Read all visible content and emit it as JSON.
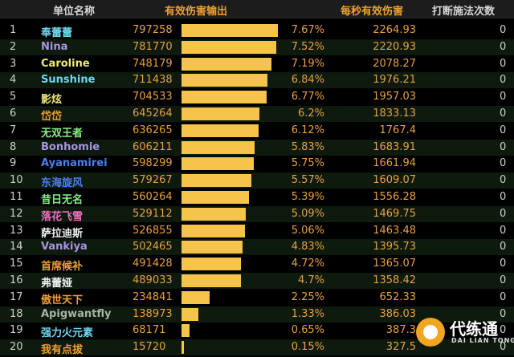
{
  "header": {
    "name": "单位名称",
    "damage": "有效伤害输出",
    "dps": "每秒有效伤害",
    "interrupts": "打断施法次数"
  },
  "colors": {
    "bar": "#f6c44a",
    "value": "#e8a040",
    "name_cyan": "#6fd8f0",
    "name_purple": "#a896e0",
    "name_yellow": "#f0ec78",
    "name_orange": "#f0a030",
    "name_green": "#88ec88",
    "name_blue": "#4a80f0",
    "name_pink": "#f070c0",
    "name_white": "#f0f0f0",
    "name_grey": "#a8b0a8"
  },
  "rows": [
    {
      "rank": "1",
      "name": "奉蕾蕾",
      "color": "#6fd8f0",
      "damage": "797258",
      "percent": "7.67%",
      "share": 7.67,
      "dps": "2264.93",
      "interrupts": "0"
    },
    {
      "rank": "2",
      "name": "Nina",
      "color": "#a896e0",
      "damage": "781770",
      "percent": "7.52%",
      "share": 7.52,
      "dps": "2220.93",
      "interrupts": "0"
    },
    {
      "rank": "3",
      "name": "Caroline",
      "color": "#f0ec78",
      "damage": "748179",
      "percent": "7.19%",
      "share": 7.19,
      "dps": "2078.27",
      "interrupts": "0"
    },
    {
      "rank": "4",
      "name": "Sunshine",
      "color": "#6fd8f0",
      "damage": "711438",
      "percent": "6.84%",
      "share": 6.84,
      "dps": "1976.21",
      "interrupts": "0"
    },
    {
      "rank": "5",
      "name": "影炫",
      "color": "#f0ec78",
      "damage": "704533",
      "percent": "6.77%",
      "share": 6.77,
      "dps": "1957.03",
      "interrupts": "0"
    },
    {
      "rank": "6",
      "name": "岱岱",
      "color": "#f0a030",
      "damage": "645264",
      "percent": "6.2%",
      "share": 6.2,
      "dps": "1833.13",
      "interrupts": "0"
    },
    {
      "rank": "7",
      "name": "无双王者",
      "color": "#88ec88",
      "damage": "636265",
      "percent": "6.12%",
      "share": 6.12,
      "dps": "1767.4",
      "interrupts": "0"
    },
    {
      "rank": "8",
      "name": "Bonhomie",
      "color": "#a896e0",
      "damage": "606211",
      "percent": "5.83%",
      "share": 5.83,
      "dps": "1683.91",
      "interrupts": "0"
    },
    {
      "rank": "9",
      "name": "Ayanamirei",
      "color": "#4a80f0",
      "damage": "598299",
      "percent": "5.75%",
      "share": 5.75,
      "dps": "1661.94",
      "interrupts": "0"
    },
    {
      "rank": "10",
      "name": "东海旋风",
      "color": "#4a80f0",
      "damage": "579267",
      "percent": "5.57%",
      "share": 5.57,
      "dps": "1609.07",
      "interrupts": "0"
    },
    {
      "rank": "11",
      "name": "昔日无名",
      "color": "#88ec88",
      "damage": "560264",
      "percent": "5.39%",
      "share": 5.39,
      "dps": "1556.28",
      "interrupts": "0"
    },
    {
      "rank": "12",
      "name": "落花飞雪",
      "color": "#f070c0",
      "damage": "529112",
      "percent": "5.09%",
      "share": 5.09,
      "dps": "1469.75",
      "interrupts": "0"
    },
    {
      "rank": "13",
      "name": "萨拉迪斯",
      "color": "#f0f0f0",
      "damage": "526855",
      "percent": "5.06%",
      "share": 5.06,
      "dps": "1463.48",
      "interrupts": "0"
    },
    {
      "rank": "14",
      "name": "Vankiya",
      "color": "#a896e0",
      "damage": "502465",
      "percent": "4.83%",
      "share": 4.83,
      "dps": "1395.73",
      "interrupts": "0"
    },
    {
      "rank": "15",
      "name": "首席候补",
      "color": "#f0a030",
      "damage": "491428",
      "percent": "4.72%",
      "share": 4.72,
      "dps": "1365.07",
      "interrupts": "0"
    },
    {
      "rank": "16",
      "name": "弗蕾娅",
      "color": "#f0f0f0",
      "damage": "489033",
      "percent": "4.7%",
      "share": 4.7,
      "dps": "1358.42",
      "interrupts": "0"
    },
    {
      "rank": "17",
      "name": "傲世天下",
      "color": "#f0a030",
      "damage": "234841",
      "percent": "2.25%",
      "share": 2.25,
      "dps": "652.33",
      "interrupts": "0"
    },
    {
      "rank": "18",
      "name": "Apigwantfly",
      "color": "#a8b0a8",
      "damage": "138973",
      "percent": "1.33%",
      "share": 1.33,
      "dps": "386.03",
      "interrupts": "0"
    },
    {
      "rank": "19",
      "name": "强力火元素",
      "color": "#6fd8f0",
      "damage": "68171",
      "percent": "0.65%",
      "share": 0.65,
      "dps": "387.3",
      "interrupts": "0"
    },
    {
      "rank": "20",
      "name": "我有点拔",
      "color": "#f0a030",
      "damage": "15720",
      "percent": "0.15%",
      "share": 0.15,
      "dps": "327.5",
      "interrupts": "0"
    }
  ],
  "watermark": {
    "title": "代练通",
    "subtitle": "DAI LIAN TONG"
  }
}
